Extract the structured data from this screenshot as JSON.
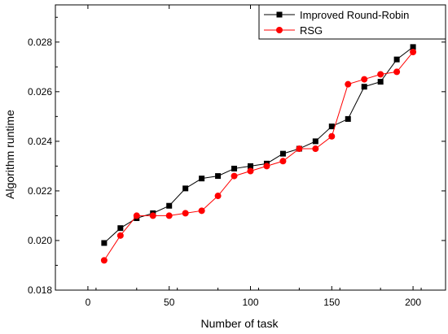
{
  "chart_data": {
    "type": "line",
    "title": "",
    "xlabel": "Number of task",
    "ylabel": "Algorithm runtime",
    "xlim": [
      -20,
      220
    ],
    "ylim": [
      0.018,
      0.0295
    ],
    "xticks": [
      0,
      50,
      100,
      150,
      200
    ],
    "xtick_labels": [
      "0",
      "50",
      "100",
      "150",
      "200"
    ],
    "yticks": [
      0.018,
      0.02,
      0.022,
      0.024,
      0.026,
      0.028
    ],
    "ytick_labels": [
      "0.018",
      "0.020",
      "0.022",
      "0.024",
      "0.026",
      "0.028"
    ],
    "grid": false,
    "legend_position": "top-right",
    "x": [
      10,
      20,
      30,
      40,
      50,
      60,
      70,
      80,
      90,
      100,
      110,
      120,
      130,
      140,
      150,
      160,
      170,
      180,
      190,
      200
    ],
    "series": [
      {
        "name": "Improved Round-Robin",
        "color": "#000000",
        "marker": "square",
        "values": [
          0.0199,
          0.0205,
          0.0209,
          0.0211,
          0.0214,
          0.0221,
          0.0225,
          0.0226,
          0.0229,
          0.023,
          0.0231,
          0.0235,
          0.0237,
          0.024,
          0.0246,
          0.0249,
          0.0262,
          0.0264,
          0.0273,
          0.0278
        ]
      },
      {
        "name": "RSG",
        "color": "#ff0000",
        "marker": "circle",
        "values": [
          0.0192,
          0.0202,
          0.021,
          0.021,
          0.021,
          0.0211,
          0.0212,
          0.0218,
          0.0226,
          0.0228,
          0.023,
          0.0232,
          0.0237,
          0.0237,
          0.0242,
          0.0263,
          0.0265,
          0.0267,
          0.0268,
          0.0276
        ]
      }
    ]
  }
}
